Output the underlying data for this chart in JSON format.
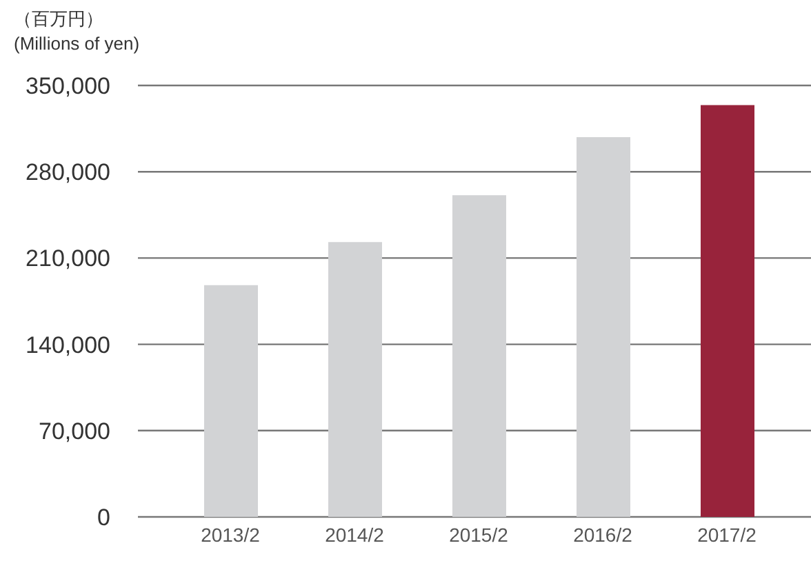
{
  "chart_data": {
    "type": "bar",
    "ylabel": "（百万円）\n(Millions of yen)",
    "categories": [
      "2013/2",
      "2014/2",
      "2015/2",
      "2016/2",
      "2017/2"
    ],
    "values": [
      188000,
      223000,
      261000,
      308000,
      334000
    ],
    "colors": [
      "#d2d3d5",
      "#d2d3d5",
      "#d2d3d5",
      "#d2d3d5",
      "#98233b"
    ],
    "ylim": [
      0,
      350000
    ],
    "yticks": [
      0,
      {
        "value": 70000,
        "label": "70,000"
      },
      {
        "value": 140000,
        "label": "140,000"
      },
      {
        "value": 210000,
        "label": "210,000"
      },
      {
        "value": 280000,
        "label": "280,000"
      },
      {
        "value": 350000,
        "label": "350,000"
      }
    ],
    "grid": "y",
    "legend": false
  }
}
